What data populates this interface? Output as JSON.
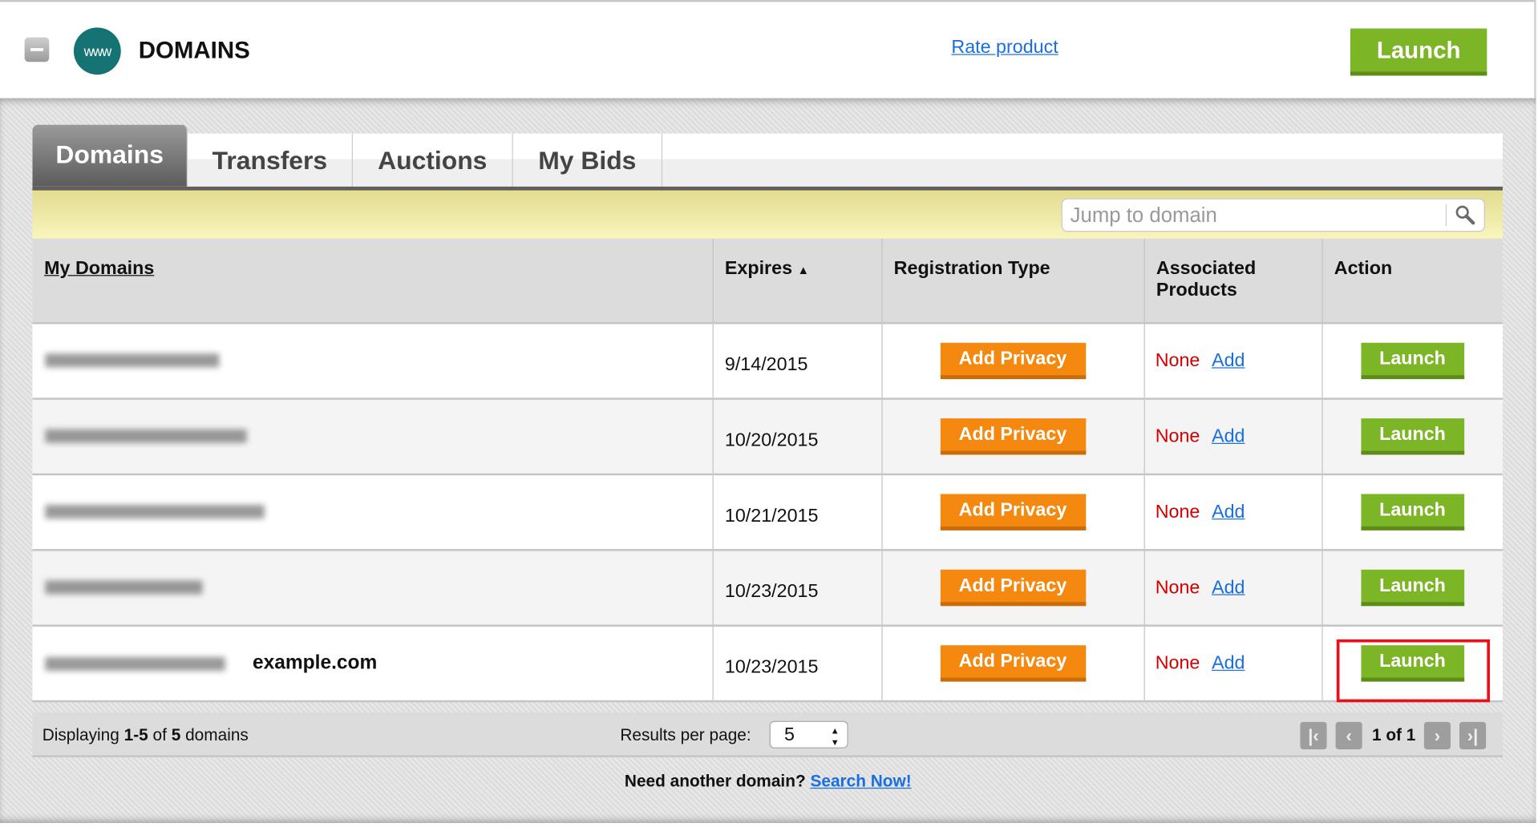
{
  "header": {
    "title": "DOMAINS",
    "logo_text": "www",
    "rate_link": "Rate product",
    "launch_label": "Launch"
  },
  "tabs": [
    {
      "label": "Domains",
      "active": true
    },
    {
      "label": "Transfers"
    },
    {
      "label": "Auctions"
    },
    {
      "label": "My Bids"
    }
  ],
  "search": {
    "placeholder": "Jump to domain"
  },
  "table": {
    "columns": [
      "My Domains",
      "Expires",
      "Registration Type",
      "Associated Products",
      "Action"
    ],
    "sort_indicator": "▲",
    "rows": [
      {
        "domain": "",
        "expires": "9/14/2015",
        "privacy": "Add Privacy",
        "products": "None",
        "add": "Add",
        "action": "Launch"
      },
      {
        "domain": "",
        "expires": "10/20/2015",
        "privacy": "Add Privacy",
        "products": "None",
        "add": "Add",
        "action": "Launch"
      },
      {
        "domain": "",
        "expires": "10/21/2015",
        "privacy": "Add Privacy",
        "products": "None",
        "add": "Add",
        "action": "Launch"
      },
      {
        "domain": "",
        "expires": "10/23/2015",
        "privacy": "Add Privacy",
        "products": "None",
        "add": "Add",
        "action": "Launch"
      },
      {
        "domain": "example.com",
        "expires": "10/23/2015",
        "privacy": "Add Privacy",
        "products": "None",
        "add": "Add",
        "action": "Launch",
        "highlighted": true
      }
    ]
  },
  "footer": {
    "displaying_prefix": "Displaying ",
    "range": "1-5",
    "of": " of ",
    "total": "5",
    "suffix": " domains",
    "per_page_label": "Results per page:",
    "per_page_value": "5",
    "page_text": "1 of 1"
  },
  "bottom": {
    "text": "Need another domain? ",
    "link": "Search Now!"
  },
  "colors": {
    "launch": "#7cb526",
    "privacy": "#f5880f",
    "none": "#d40000",
    "link": "#1a6fe0",
    "highlight": "#e8101a",
    "logo": "#167373"
  }
}
